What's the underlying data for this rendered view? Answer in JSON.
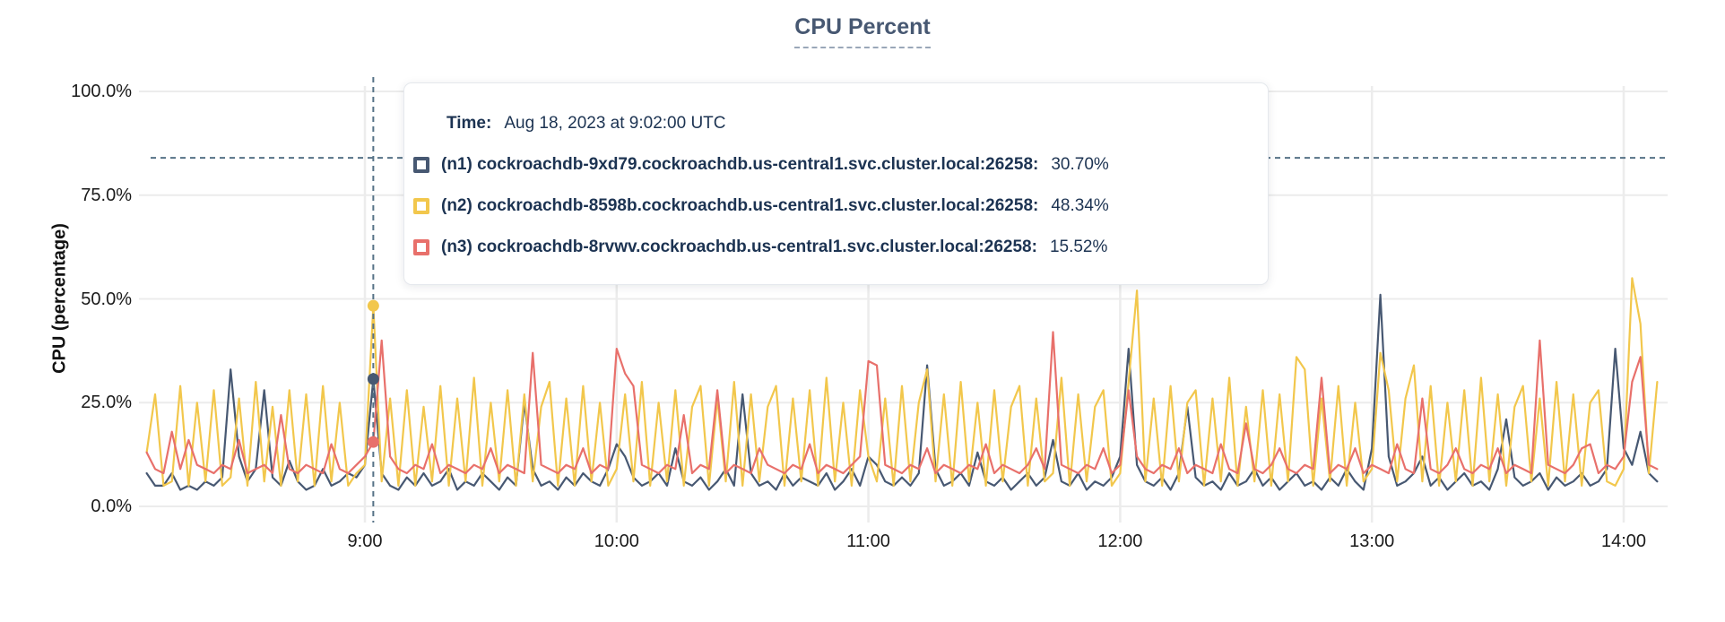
{
  "header": {
    "title": "CPU Percent"
  },
  "tooltip": {
    "time_label": "Time:",
    "time_value": "Aug 18, 2023 at 9:02:00 UTC"
  },
  "chart_data": {
    "type": "line",
    "title": "CPU Percent",
    "xlabel": "",
    "ylabel": "CPU (percentage)",
    "ylim": [
      0,
      100
    ],
    "grid": true,
    "legend_position": "tooltip-overlay",
    "y_ticks": [
      {
        "label": "100.0%",
        "value": 100
      },
      {
        "label": "75.0%",
        "value": 75
      },
      {
        "label": "50.0%",
        "value": 50
      },
      {
        "label": "25.0%",
        "value": 25
      },
      {
        "label": "0.0%",
        "value": 0
      }
    ],
    "x_ticks": [
      {
        "label": "9:00",
        "minutes": 540
      },
      {
        "label": "10:00",
        "minutes": 600
      },
      {
        "label": "11:00",
        "minutes": 660
      },
      {
        "label": "12:00",
        "minutes": 720
      },
      {
        "label": "13:00",
        "minutes": 780
      },
      {
        "label": "14:00",
        "minutes": 840
      }
    ],
    "x_start": "8:08",
    "x_end": "14:08",
    "x_start_minutes": 488,
    "x_step_minutes": 2,
    "hover": {
      "time_label": "9:02",
      "time_minutes": 542,
      "crosshair_y_percent": 84
    },
    "series": [
      {
        "id": "n1",
        "label": "(n1) cockroachdb-9xd79.cockroachdb.us-central1.svc.cluster.local:26258:",
        "hover_value": "30.70%",
        "hover_percent": 30.7,
        "color": "#475872",
        "values": [
          8,
          5,
          5,
          8,
          4,
          5,
          4,
          6,
          5,
          7,
          33,
          12,
          6,
          9,
          28,
          7,
          5,
          11,
          6,
          4,
          5,
          9,
          5,
          6,
          8,
          7,
          10,
          30.7,
          8,
          5,
          4,
          7,
          5,
          8,
          5,
          6,
          9,
          4,
          6,
          5,
          8,
          6,
          4,
          7,
          5,
          25,
          9,
          5,
          6,
          4,
          7,
          5,
          8,
          6,
          5,
          9,
          15,
          12,
          7,
          5,
          6,
          8,
          5,
          14,
          6,
          5,
          7,
          4,
          6,
          9,
          5,
          27,
          8,
          5,
          6,
          4,
          8,
          5,
          7,
          6,
          5,
          8,
          4,
          6,
          9,
          5,
          12,
          10,
          6,
          5,
          7,
          5,
          8,
          34,
          9,
          5,
          6,
          8,
          5,
          13,
          6,
          5,
          7,
          4,
          6,
          8,
          5,
          7,
          16,
          6,
          5,
          8,
          4,
          6,
          5,
          7,
          12,
          38,
          10,
          6,
          5,
          7,
          4,
          8,
          24,
          7,
          5,
          6,
          4,
          8,
          5,
          6,
          9,
          5,
          7,
          4,
          6,
          8,
          5,
          6,
          4,
          7,
          5,
          9,
          6,
          4,
          14,
          51,
          12,
          5,
          6,
          8,
          12,
          5,
          7,
          4,
          6,
          8,
          5,
          6,
          4,
          9,
          21,
          7,
          5,
          6,
          8,
          4,
          7,
          5,
          6,
          8,
          5,
          6,
          9,
          38,
          14,
          10,
          18,
          8,
          6
        ]
      },
      {
        "id": "n2",
        "label": "(n2) cockroachdb-8598b.cockroachdb.us-central1.svc.cluster.local:26258:",
        "hover_value": "48.34%",
        "hover_percent": 48.34,
        "color": "#F2C74C",
        "values": [
          13,
          27,
          5,
          6,
          29,
          5,
          25,
          6,
          28,
          5,
          7,
          26,
          5,
          30,
          6,
          24,
          5,
          28,
          6,
          27,
          5,
          29,
          6,
          25,
          5,
          8,
          10,
          48.34,
          6,
          26,
          5,
          28,
          5,
          24,
          6,
          29,
          5,
          26,
          6,
          31,
          5,
          25,
          6,
          28,
          5,
          27,
          6,
          24,
          30,
          5,
          26,
          5,
          29,
          6,
          25,
          5,
          9,
          27,
          6,
          30,
          5,
          25,
          6,
          28,
          5,
          24,
          29,
          5,
          26,
          6,
          30,
          5,
          27,
          6,
          24,
          29,
          5,
          26,
          6,
          28,
          5,
          31,
          6,
          25,
          5,
          28,
          12,
          6,
          26,
          5,
          29,
          6,
          25,
          33,
          6,
          27,
          5,
          30,
          6,
          25,
          5,
          28,
          6,
          24,
          29,
          5,
          26,
          6,
          8,
          31,
          5,
          27,
          6,
          24,
          28,
          5,
          8,
          30,
          52,
          6,
          26,
          5,
          29,
          6,
          25,
          28,
          5,
          26,
          6,
          31,
          5,
          24,
          6,
          28,
          5,
          27,
          6,
          36,
          33,
          5,
          26,
          6,
          29,
          5,
          25,
          6,
          9,
          37,
          28,
          6,
          26,
          34,
          6,
          29,
          5,
          25,
          6,
          28,
          5,
          31,
          6,
          27,
          5,
          24,
          29,
          6,
          26,
          5,
          30,
          6,
          27,
          5,
          25,
          28,
          6,
          5,
          9,
          55,
          44,
          8,
          30
        ]
      },
      {
        "id": "n3",
        "label": "(n3) cockroachdb-8rvwv.cockroachdb.us-central1.svc.cluster.local:26258:",
        "hover_value": "15.52%",
        "hover_percent": 15.52,
        "color": "#E8706B",
        "values": [
          13,
          9,
          8,
          18,
          9,
          16,
          10,
          9,
          8,
          10,
          9,
          16,
          8,
          9,
          10,
          8,
          22,
          9,
          8,
          10,
          9,
          8,
          15,
          9,
          8,
          10,
          12,
          15.52,
          40,
          12,
          9,
          8,
          10,
          9,
          15,
          8,
          10,
          9,
          8,
          10,
          9,
          14,
          8,
          10,
          9,
          8,
          37,
          10,
          9,
          8,
          10,
          9,
          14,
          8,
          10,
          9,
          38,
          32,
          29,
          10,
          9,
          8,
          10,
          9,
          22,
          8,
          10,
          9,
          28,
          8,
          10,
          9,
          8,
          14,
          10,
          9,
          8,
          10,
          9,
          15,
          8,
          10,
          9,
          8,
          10,
          12,
          35,
          34,
          10,
          9,
          8,
          10,
          9,
          14,
          8,
          10,
          9,
          8,
          10,
          9,
          15,
          8,
          10,
          9,
          8,
          10,
          14,
          9,
          42,
          10,
          9,
          8,
          10,
          9,
          14,
          8,
          10,
          28,
          12,
          9,
          8,
          10,
          9,
          14,
          8,
          10,
          9,
          8,
          15,
          9,
          8,
          20,
          9,
          8,
          10,
          14,
          9,
          8,
          10,
          9,
          31,
          8,
          10,
          9,
          14,
          8,
          10,
          9,
          8,
          15,
          9,
          8,
          26,
          9,
          8,
          10,
          14,
          9,
          8,
          10,
          9,
          14,
          8,
          10,
          9,
          8,
          40,
          10,
          9,
          8,
          10,
          14,
          15,
          8,
          10,
          9,
          12,
          30,
          36,
          10,
          9
        ]
      }
    ]
  }
}
